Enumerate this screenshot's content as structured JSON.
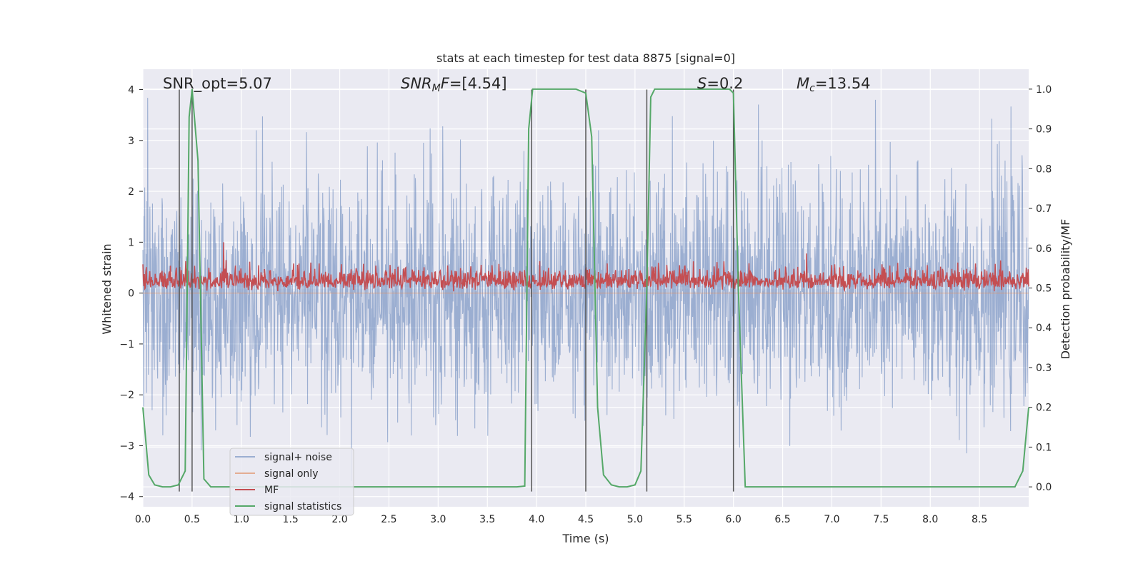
{
  "chart_data": {
    "type": "line",
    "title": "stats at each timestep for test data 8875 [signal=0]",
    "xlabel": "Time (s)",
    "ylabel": "Whitened strain",
    "y2label": "Detection probability/MF",
    "xlim": [
      0.0,
      9.0
    ],
    "ylim": [
      -4.2,
      4.4
    ],
    "y2lim": [
      -0.05,
      1.05
    ],
    "xticks": [
      "0.0",
      "0.5",
      "1.0",
      "1.5",
      "2.0",
      "2.5",
      "3.0",
      "3.5",
      "4.0",
      "4.5",
      "5.0",
      "5.5",
      "6.0",
      "6.5",
      "7.0",
      "7.5",
      "8.0",
      "8.5"
    ],
    "yticks": [
      "4",
      "3",
      "2",
      "1",
      "0",
      "−1",
      "−2",
      "−3",
      "−4"
    ],
    "y2ticks": [
      "1.0",
      "0.9",
      "0.8",
      "0.7",
      "0.6",
      "0.5",
      "0.4",
      "0.3",
      "0.2",
      "0.1",
      "0.0"
    ],
    "grid": true,
    "legend_position": "lower-left",
    "colors": {
      "background": "#eaeaf2",
      "noise": "#4c72b0",
      "signal": "#dd8452",
      "mf": "#c44e52",
      "stats": "#55a868",
      "vlines": "#555555"
    },
    "annotations": {
      "snr_opt": "SNR_opt=5.07",
      "snr_mf": "=[4.54]",
      "snr_mf_sym": "SNR",
      "snr_mf_sub": "M",
      "snr_mf_sym2": "F",
      "s_sym": "S",
      "s_val": "=0.2",
      "mc_sym": "M",
      "mc_sub": "c",
      "mc_val": "=13.54"
    },
    "series": [
      {
        "name": "signal+ noise",
        "axis": "left",
        "amplitude_range": [
          -4.0,
          3.9
        ]
      },
      {
        "name": "signal only",
        "axis": "left",
        "values": "flat at 0"
      },
      {
        "name": "MF",
        "axis": "left",
        "typical_range": [
          0.0,
          1.0
        ]
      },
      {
        "name": "signal statistics",
        "axis": "right",
        "x": [
          0.0,
          0.06,
          0.12,
          0.2,
          0.28,
          0.36,
          0.43,
          0.47,
          0.5,
          0.56,
          0.62,
          0.69,
          3.8,
          3.88,
          3.92,
          3.96,
          4.4,
          4.5,
          4.56,
          4.62,
          4.68,
          4.76,
          4.84,
          4.92,
          5.0,
          5.06,
          5.12,
          5.16,
          5.2,
          5.26,
          5.96,
          6.0,
          6.05,
          6.12,
          8.86,
          8.94,
          9.0
        ],
        "values": [
          0.2,
          0.03,
          0.005,
          0.0,
          0.0,
          0.005,
          0.04,
          0.93,
          1.0,
          0.82,
          0.02,
          0.0,
          0.0,
          0.002,
          0.9,
          1.0,
          1.0,
          0.99,
          0.88,
          0.2,
          0.03,
          0.005,
          0.0,
          0.0,
          0.005,
          0.04,
          0.5,
          0.98,
          1.0,
          1.0,
          1.0,
          0.99,
          0.5,
          0.0,
          0.0,
          0.04,
          0.2
        ]
      }
    ],
    "vertical_lines_x": [
      0.37,
      0.5,
      3.95,
      4.5,
      5.12,
      6.0
    ]
  }
}
